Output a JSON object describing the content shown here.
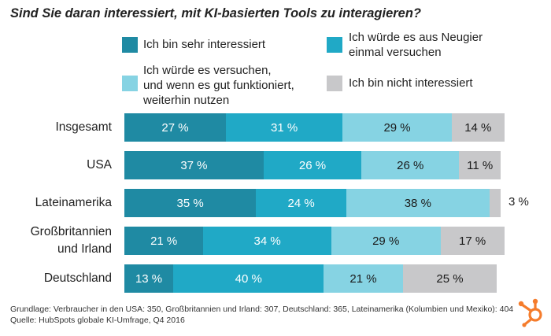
{
  "chart_data": {
    "type": "bar",
    "orientation": "horizontal",
    "stacked": true,
    "title": "Sind Sie daran interessiert, mit KI-basierten Tools zu interagieren?",
    "categories": [
      [
        "Insgesamt"
      ],
      [
        "USA"
      ],
      [
        "Lateinamerika"
      ],
      [
        "Großbritannien",
        "und Irland"
      ],
      [
        "Deutschland"
      ]
    ],
    "series": [
      {
        "name": [
          "Ich bin sehr interessiert"
        ],
        "color": "#1f8aa3",
        "text_color": "#ffffff",
        "values": [
          27,
          37,
          35,
          21,
          13
        ],
        "labels": [
          "27 %",
          "37 %",
          "35 %",
          "21 %",
          "13 %"
        ]
      },
      {
        "name": [
          "Ich würde es aus Neugier",
          "einmal versuchen"
        ],
        "color": "#20a9c6",
        "text_color": "#ffffff",
        "values": [
          31,
          26,
          24,
          34,
          40
        ],
        "labels": [
          "31 %",
          "26 %",
          "24 %",
          "34 %",
          "40 %"
        ]
      },
      {
        "name": [
          "Ich würde es versuchen,",
          "und wenn es gut funktioniert,",
          "weiterhin nutzen"
        ],
        "color": "#86d3e3",
        "text_color": "#1a1a1a",
        "values": [
          29,
          26,
          38,
          29,
          21
        ],
        "labels": [
          "29 %",
          "26 %",
          "38 %",
          "29 %",
          "21 %"
        ]
      },
      {
        "name": [
          "Ich bin nicht interessiert"
        ],
        "color": "#c8c8ca",
        "text_color": "#1a1a1a",
        "values": [
          14,
          11,
          3,
          17,
          25
        ],
        "labels": [
          "14 %",
          "11 %",
          "3 %",
          "17 %",
          "25 %"
        ]
      }
    ],
    "xlim": [
      0,
      100
    ],
    "legend": "top",
    "grid": false
  },
  "footer": {
    "basis": "Grundlage: Verbraucher in den USA: 350, Großbritannien und Irland: 307, Deutschland: 365, Lateinamerika (Kolumbien und Mexiko): 404",
    "source": "Quelle: HubSpots globale KI-Umfrage, Q4 2016"
  },
  "brand": {
    "logo_color": "#f57c2c"
  }
}
